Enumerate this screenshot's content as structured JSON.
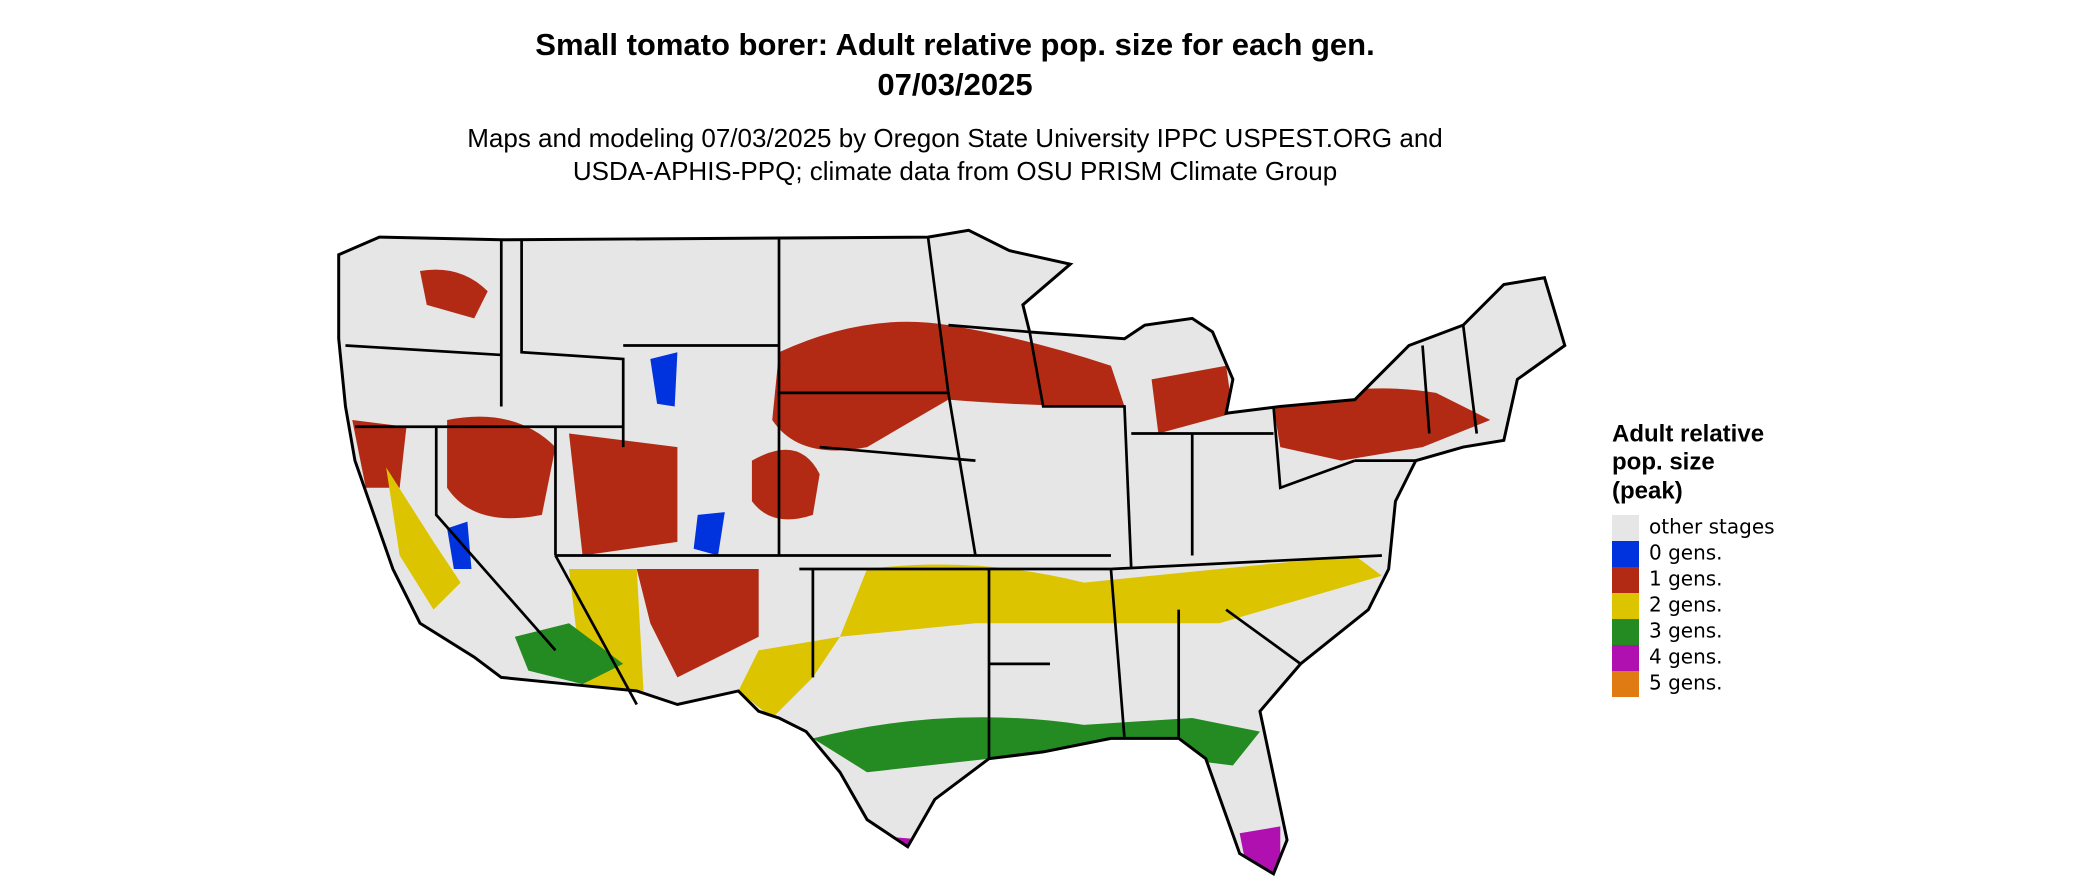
{
  "header": {
    "title": [
      "Small tomato borer: Adult relative pop. size for each gen.",
      "07/03/2025"
    ],
    "subtitle": [
      "Maps and modeling 07/03/2025 by Oregon State University IPPC USPEST.ORG and",
      "USDA-APHIS-PPQ; climate data from OSU PRISM Climate Group"
    ]
  },
  "legend": {
    "title": [
      "Adult relative",
      "pop. size",
      "(peak)"
    ],
    "items": [
      {
        "label": "other stages",
        "color": "#e6e6e6"
      },
      {
        "label": "0 gens.",
        "color": "#0033dd"
      },
      {
        "label": "1 gens.",
        "color": "#b22a14"
      },
      {
        "label": "2 gens.",
        "color": "#ddc400"
      },
      {
        "label": "3 gens.",
        "color": "#238b22"
      },
      {
        "label": "4 gens.",
        "color": "#b010b0"
      },
      {
        "label": "5 gens.",
        "color": "#e07b14"
      }
    ]
  }
}
